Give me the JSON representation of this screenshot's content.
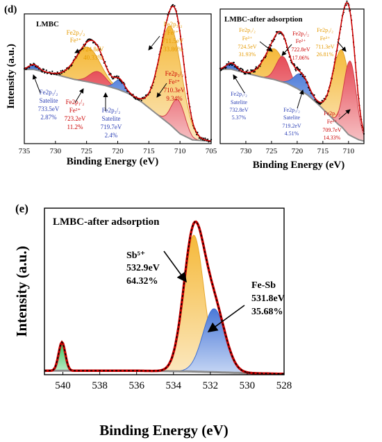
{
  "panel_labels": {
    "d": "(d)",
    "e": "(e)"
  },
  "chart_data": [
    {
      "type": "line",
      "panel": "d-left",
      "title": "LMBC",
      "xlabel": "Binding Energy (eV)",
      "ylabel": "Intensity (a.u.)",
      "xlim": [
        735,
        705
      ],
      "ylim": [
        0,
        1.05
      ],
      "x_ticks": [
        735,
        730,
        725,
        720,
        715,
        710,
        705
      ],
      "colors": {
        "orange": "#f5c04a",
        "red": "#e8515a",
        "blue": "#4f7fd9",
        "fit": "#cc0000",
        "background": "#8c8c8c"
      },
      "background": [
        [
          735,
          0.6
        ],
        [
          733.5,
          0.6
        ],
        [
          730,
          0.56
        ],
        [
          727,
          0.52
        ],
        [
          724.8,
          0.5
        ],
        [
          722,
          0.47
        ],
        [
          720,
          0.44
        ],
        [
          718,
          0.4
        ],
        [
          716,
          0.33
        ],
        [
          714,
          0.25
        ],
        [
          712,
          0.17
        ],
        [
          711.5,
          0.15
        ],
        [
          710,
          0.08
        ],
        [
          708,
          0.03
        ],
        [
          705,
          0.02
        ]
      ],
      "components": [
        {
          "label": "Fe2p1/2 Fe3+",
          "energy": "724.8eV",
          "area": "40.33%",
          "center": 724.8,
          "height": 0.28,
          "width": 2.0
        },
        {
          "label": "Fe2p3/2 Fe3+",
          "energy": "711.5eV",
          "area": "33.86%",
          "center": 711.5,
          "height": 0.8,
          "width": 1.8
        },
        {
          "label": "Fe2p1/2 Fe2+",
          "energy": "723.2eV",
          "area": "11.2%",
          "center": 723.2,
          "height": 0.1,
          "width": 1.3
        },
        {
          "label": "Fe2p3/2 Fe2+",
          "energy": "710.3eV",
          "area": "9.34%",
          "center": 710.3,
          "height": 0.26,
          "width": 1.1
        },
        {
          "label": "Fe2p1/2 Satelite",
          "energy": "733.5eV",
          "area": "2.87%",
          "center": 733.5,
          "height": 0.04,
          "width": 0.8
        },
        {
          "label": "Fe2p3/2 Satelite",
          "energy": "719.7eV",
          "area": "2.4%",
          "center": 719.7,
          "height": 0.08,
          "width": 0.8
        }
      ],
      "annotations": [
        {
          "lines": [
            "Fe2p₁/₂",
            "Fe³⁺",
            "724.8eV",
            "40.33%"
          ],
          "color": "#e59a00"
        },
        {
          "lines": [
            "Fe2p₃/₂",
            "Fe³⁺",
            "711.5eV",
            "33.86%"
          ],
          "color": "#e59a00"
        },
        {
          "lines": [
            "Fe2p₃/₂",
            "Fe²⁺",
            "710.3eV",
            "9.34%"
          ],
          "color": "#cc0000"
        },
        {
          "lines": [
            "Fe2p₁/₂",
            "Fe²⁺",
            "723.2eV",
            "11.2%"
          ],
          "color": "#cc0000"
        },
        {
          "lines": [
            "Fe2p₁/₂",
            "Satelite",
            "733.5eV",
            "2.87%"
          ],
          "color": "#2b3fb5"
        },
        {
          "lines": [
            "Fe2p₃/₂",
            "Satelite",
            "719.7eV",
            "2.4%"
          ],
          "color": "#2b3fb5"
        }
      ]
    },
    {
      "type": "line",
      "panel": "d-right",
      "title": "LMBC-after adsorption",
      "xlabel": "Binding Energy (eV)",
      "ylabel": "",
      "xlim": [
        735,
        707
      ],
      "ylim": [
        0,
        1.05
      ],
      "x_ticks": [
        730,
        725,
        720,
        715,
        710
      ],
      "colors": {
        "orange": "#f5c04a",
        "red": "#e8515a",
        "blue": "#4f7fd9",
        "fit": "#cc0000",
        "background": "#8c8c8c"
      },
      "background": [
        [
          735,
          0.58
        ],
        [
          732.8,
          0.58
        ],
        [
          730,
          0.55
        ],
        [
          727,
          0.52
        ],
        [
          724.5,
          0.5
        ],
        [
          722,
          0.47
        ],
        [
          720,
          0.43
        ],
        [
          718,
          0.38
        ],
        [
          716,
          0.31
        ],
        [
          714,
          0.23
        ],
        [
          712,
          0.15
        ],
        [
          711.3,
          0.13
        ],
        [
          710,
          0.07
        ],
        [
          708,
          0.03
        ],
        [
          707,
          0.02
        ]
      ],
      "components": [
        {
          "label": "Fe2p1/2 Fe3+",
          "energy": "724.5eV",
          "area": "31.93%",
          "center": 724.5,
          "height": 0.24,
          "width": 2.0
        },
        {
          "label": "Fe2p3/2 Fe3+",
          "energy": "711.3eV",
          "area": "26.81%",
          "center": 711.3,
          "height": 0.6,
          "width": 1.7
        },
        {
          "label": "Fe2p1/2 Fe2+",
          "energy": "722.8eV",
          "area": "17.06%",
          "center": 722.8,
          "height": 0.2,
          "width": 1.3
        },
        {
          "label": "Fe2p3/2 Fe2+",
          "energy": "709.7eV",
          "area": "14.33%",
          "center": 709.7,
          "height": 0.58,
          "width": 1.2
        },
        {
          "label": "Fe2p1/2 Satelite",
          "energy": "732.8eV",
          "area": "5.37%",
          "center": 732.8,
          "height": 0.05,
          "width": 1.0
        },
        {
          "label": "Fe2p3/2 Satelite",
          "energy": "719.2eV",
          "area": "4.51%",
          "center": 719.2,
          "height": 0.13,
          "width": 1.4
        }
      ],
      "annotations": [
        {
          "lines": [
            "Fe2p₁/₂",
            "Fe³⁺",
            "724.5eV",
            "31.93%"
          ],
          "color": "#e59a00"
        },
        {
          "lines": [
            "Fe2p₁/₂",
            "Fe²⁺",
            "722.8eV",
            "17.06%"
          ],
          "color": "#cc0000"
        },
        {
          "lines": [
            "Fe2p₃/₂",
            "Fe³⁺",
            "711.3eV",
            "26.81%"
          ],
          "color": "#e59a00"
        },
        {
          "lines": [
            "Fe2p₁/₂",
            "Satelite",
            "732.8eV",
            "5.37%"
          ],
          "color": "#2b3fb5"
        },
        {
          "lines": [
            "Fe2p₃/₂",
            "Satelite",
            "719.2eV",
            "4.51%"
          ],
          "color": "#2b3fb5"
        },
        {
          "lines": [
            "Fe2p₃/₂",
            "Fe²⁺",
            "709.7eV",
            "14.33%"
          ],
          "color": "#cc0000"
        }
      ]
    },
    {
      "type": "line",
      "panel": "e",
      "title": "LMBC-after adsorption",
      "xlabel": "Binding Energy (eV)",
      "ylabel": "Intensity (a.u.)",
      "xlim": [
        541,
        528
      ],
      "ylim": [
        0,
        1.05
      ],
      "x_ticks": [
        540,
        538,
        536,
        534,
        532,
        530,
        528
      ],
      "colors": {
        "orange": "#f5c04a",
        "blue": "#4f7fd9",
        "green": "#3cc35f",
        "fit": "#cc0000",
        "background": "#8c8c8c"
      },
      "background": [
        [
          541,
          0.025
        ],
        [
          536,
          0.025
        ],
        [
          533,
          0.02
        ],
        [
          530,
          0.01
        ],
        [
          528,
          0.005
        ]
      ],
      "components": [
        {
          "label": "Sb5+",
          "energy": "532.9eV",
          "area": "64.32%",
          "center": 532.9,
          "height": 0.86,
          "width": 0.55
        },
        {
          "label": "Fe-Sb",
          "energy": "531.8eV",
          "area": "35.68%",
          "center": 531.8,
          "height": 0.4,
          "width": 0.6
        },
        {
          "label": "",
          "energy": "",
          "area": "",
          "center": 540.05,
          "height": 0.18,
          "width": 0.18
        }
      ],
      "annotations": [
        {
          "lines": [
            "Sb⁵⁺",
            "532.9eV",
            "64.32%"
          ],
          "color": "#000000"
        },
        {
          "lines": [
            "Fe-Sb",
            "531.8eV",
            "35.68%"
          ],
          "color": "#000000"
        }
      ]
    }
  ]
}
